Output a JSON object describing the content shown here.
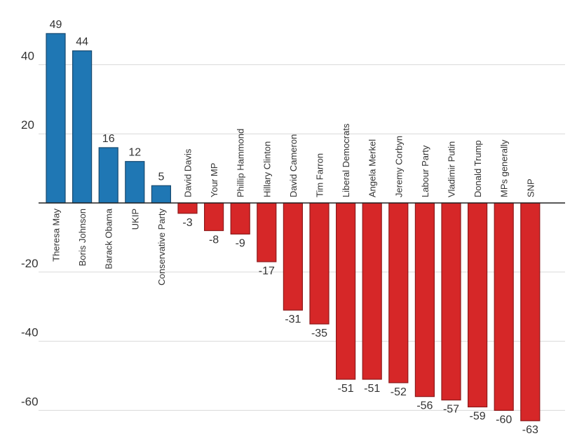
{
  "chart_data": {
    "type": "bar",
    "title": "",
    "xlabel": "",
    "ylabel": "",
    "ylim": [
      -63,
      50
    ],
    "yticks": [
      40,
      20,
      -20,
      -40,
      -60
    ],
    "grid": true,
    "legend": "none",
    "colors": {
      "positive_fill": "#1f77b4",
      "positive_stroke": "#17496f",
      "negative_fill": "#d62728",
      "negative_stroke": "#8e1a1b",
      "grid": "#d9d9d9",
      "zero_line": "#222222"
    },
    "categories": [
      "Theresa May",
      "Boris Johnson",
      "Barack Obama",
      "UKIP",
      "Conservative Party",
      "David Davis",
      "Your MP",
      "Phillip Hammond",
      "Hillary Clinton",
      "David Cameron",
      "Tim Farron",
      "Liberal Democrats",
      "Angela Merkel",
      "Jeremy Corbyn",
      "Labour Party",
      "Vladimir Putin",
      "Donald Trump",
      "MPs generally",
      "SNP"
    ],
    "values": [
      49,
      44,
      16,
      12,
      5,
      -3,
      -8,
      -9,
      -17,
      -31,
      -35,
      -51,
      -51,
      -52,
      -56,
      -57,
      -59,
      -60,
      -63
    ]
  }
}
